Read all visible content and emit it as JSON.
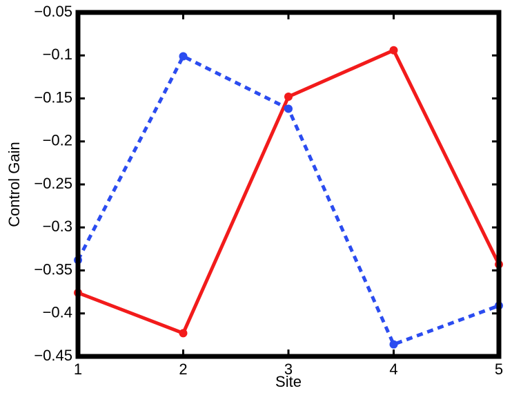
{
  "chart_data": {
    "type": "line",
    "x_label": "Site",
    "y_label": "Control Gain",
    "x": [
      1,
      2,
      3,
      4,
      5
    ],
    "xlim": [
      1,
      5
    ],
    "xticks": [
      1,
      2,
      3,
      4,
      5
    ],
    "ylim": [
      -0.45,
      -0.05
    ],
    "yticks": [
      {
        "value": -0.45,
        "label": "−0.45"
      },
      {
        "value": -0.4,
        "label": "−0.4"
      },
      {
        "value": -0.35,
        "label": "−0.35"
      },
      {
        "value": -0.3,
        "label": "−0.3"
      },
      {
        "value": -0.25,
        "label": "−0.25"
      },
      {
        "value": -0.2,
        "label": "−0.2"
      },
      {
        "value": -0.15,
        "label": "−0.15"
      },
      {
        "value": -0.1,
        "label": "−0.1"
      },
      {
        "value": -0.05,
        "label": "−0.05"
      }
    ],
    "grid": false,
    "series": [
      {
        "color": "#f21b1b",
        "dashed": false,
        "values": [
          -0.376,
          -0.423,
          -0.148,
          -0.094,
          -0.343
        ]
      },
      {
        "color": "#2b4cf0",
        "dashed": true,
        "values": [
          -0.338,
          -0.101,
          -0.162,
          -0.436,
          -0.391
        ]
      }
    ]
  }
}
